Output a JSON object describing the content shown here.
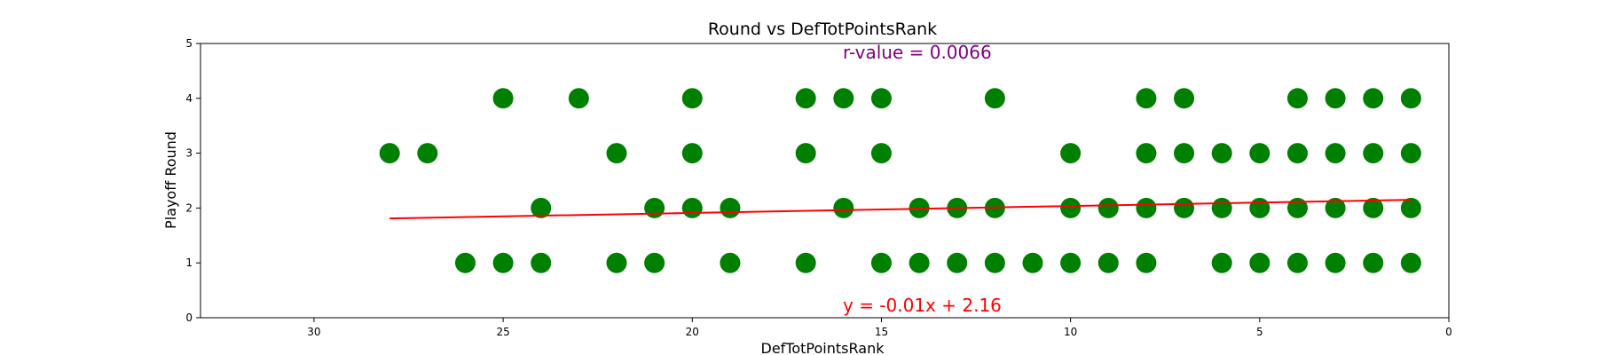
{
  "chart_data": {
    "type": "scatter",
    "title": "Round vs DefTotPointsRank",
    "xlabel": "DefTotPointsRank",
    "ylabel": "Playoff Round",
    "xlim": [
      33,
      0
    ],
    "ylim": [
      0,
      5
    ],
    "x_ticks": [
      30,
      25,
      20,
      15,
      10,
      5,
      0
    ],
    "y_ticks": [
      0,
      1,
      2,
      3,
      4,
      5
    ],
    "x_inverted": true,
    "grid": false,
    "legend": "none",
    "colors": {
      "points": "#008000",
      "regression": "#ff0000",
      "r_text": "#800080"
    },
    "points": [
      {
        "x": 25,
        "y": 4
      },
      {
        "x": 23,
        "y": 4
      },
      {
        "x": 20,
        "y": 4
      },
      {
        "x": 17,
        "y": 4
      },
      {
        "x": 16,
        "y": 4
      },
      {
        "x": 15,
        "y": 4
      },
      {
        "x": 12,
        "y": 4
      },
      {
        "x": 8,
        "y": 4
      },
      {
        "x": 7,
        "y": 4
      },
      {
        "x": 4,
        "y": 4
      },
      {
        "x": 3,
        "y": 4
      },
      {
        "x": 2,
        "y": 4
      },
      {
        "x": 1,
        "y": 4
      },
      {
        "x": 28,
        "y": 3
      },
      {
        "x": 27,
        "y": 3
      },
      {
        "x": 22,
        "y": 3
      },
      {
        "x": 20,
        "y": 3
      },
      {
        "x": 17,
        "y": 3
      },
      {
        "x": 15,
        "y": 3
      },
      {
        "x": 10,
        "y": 3
      },
      {
        "x": 8,
        "y": 3
      },
      {
        "x": 7,
        "y": 3
      },
      {
        "x": 6,
        "y": 3
      },
      {
        "x": 5,
        "y": 3
      },
      {
        "x": 4,
        "y": 3
      },
      {
        "x": 3,
        "y": 3
      },
      {
        "x": 2,
        "y": 3
      },
      {
        "x": 1,
        "y": 3
      },
      {
        "x": 24,
        "y": 2
      },
      {
        "x": 21,
        "y": 2
      },
      {
        "x": 20,
        "y": 2
      },
      {
        "x": 19,
        "y": 2
      },
      {
        "x": 16,
        "y": 2
      },
      {
        "x": 14,
        "y": 2
      },
      {
        "x": 13,
        "y": 2
      },
      {
        "x": 12,
        "y": 2
      },
      {
        "x": 10,
        "y": 2
      },
      {
        "x": 9,
        "y": 2
      },
      {
        "x": 8,
        "y": 2
      },
      {
        "x": 7,
        "y": 2
      },
      {
        "x": 6,
        "y": 2
      },
      {
        "x": 5,
        "y": 2
      },
      {
        "x": 4,
        "y": 2
      },
      {
        "x": 3,
        "y": 2
      },
      {
        "x": 2,
        "y": 2
      },
      {
        "x": 1,
        "y": 2
      },
      {
        "x": 26,
        "y": 1
      },
      {
        "x": 25,
        "y": 1
      },
      {
        "x": 24,
        "y": 1
      },
      {
        "x": 22,
        "y": 1
      },
      {
        "x": 21,
        "y": 1
      },
      {
        "x": 19,
        "y": 1
      },
      {
        "x": 17,
        "y": 1
      },
      {
        "x": 15,
        "y": 1
      },
      {
        "x": 14,
        "y": 1
      },
      {
        "x": 13,
        "y": 1
      },
      {
        "x": 12,
        "y": 1
      },
      {
        "x": 11,
        "y": 1
      },
      {
        "x": 10,
        "y": 1
      },
      {
        "x": 9,
        "y": 1
      },
      {
        "x": 8,
        "y": 1
      },
      {
        "x": 6,
        "y": 1
      },
      {
        "x": 5,
        "y": 1
      },
      {
        "x": 4,
        "y": 1
      },
      {
        "x": 3,
        "y": 1
      },
      {
        "x": 2,
        "y": 1
      },
      {
        "x": 1,
        "y": 1
      }
    ],
    "regression_line": {
      "x": [
        28,
        1
      ],
      "y": [
        1.81,
        2.15
      ]
    },
    "annotations": {
      "r_value": "r-value = 0.0066",
      "equation": "y = -0.01x + 2.16"
    }
  }
}
